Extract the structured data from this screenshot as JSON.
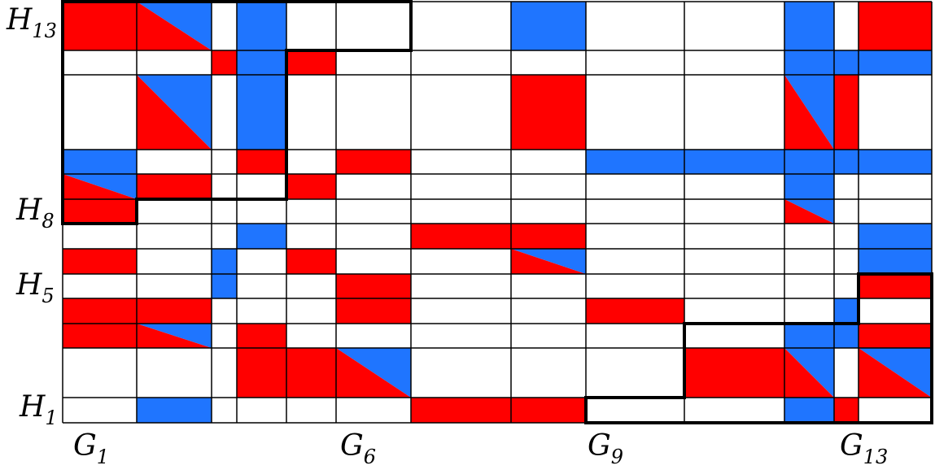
{
  "colors": {
    "red": "#ff0000",
    "blue": "#1f75ff",
    "white": "#ffffff",
    "grid": "#000000",
    "outline": "#000000"
  },
  "row_labels": [
    {
      "letter": "H",
      "index": "13"
    },
    {
      "letter": "H",
      "index": "8"
    },
    {
      "letter": "H",
      "index": "5"
    },
    {
      "letter": "H",
      "index": "1"
    }
  ],
  "col_labels": [
    {
      "letter": "G",
      "index": "1"
    },
    {
      "letter": "G",
      "index": "6"
    },
    {
      "letter": "G",
      "index": "9"
    },
    {
      "letter": "G",
      "index": "13"
    }
  ],
  "grid": {
    "columns": 13,
    "rows": 13
  },
  "cells": [
    {
      "c": 1,
      "r": 13,
      "fill": "red"
    },
    {
      "c": 2,
      "r": 13,
      "fill": "split",
      "upper": "blue",
      "lower": "red"
    },
    {
      "c": 4,
      "r": 13,
      "fill": "blue"
    },
    {
      "c": 8,
      "r": 13,
      "fill": "blue"
    },
    {
      "c": 11,
      "r": 13,
      "fill": "blue"
    },
    {
      "c": 13,
      "r": 13,
      "fill": "red"
    },
    {
      "c": 3,
      "r": 12,
      "fill": "red"
    },
    {
      "c": 4,
      "r": 12,
      "fill": "blue"
    },
    {
      "c": 5,
      "r": 12,
      "fill": "red"
    },
    {
      "c": 11,
      "r": 12,
      "fill": "blue"
    },
    {
      "c": 12,
      "r": 12,
      "fill": "blue"
    },
    {
      "c": 13,
      "r": 12,
      "fill": "blue"
    },
    {
      "c": 2,
      "r": 11,
      "fill": "split",
      "upper": "blue",
      "lower": "red"
    },
    {
      "c": 4,
      "r": 11,
      "fill": "blue"
    },
    {
      "c": 8,
      "r": 11,
      "fill": "red"
    },
    {
      "c": 11,
      "r": 11,
      "fill": "split",
      "upper": "blue",
      "lower": "red"
    },
    {
      "c": 12,
      "r": 11,
      "fill": "red"
    },
    {
      "c": 1,
      "r": 10,
      "fill": "blue"
    },
    {
      "c": 4,
      "r": 10,
      "fill": "red"
    },
    {
      "c": 6,
      "r": 10,
      "fill": "red"
    },
    {
      "c": 9,
      "r": 10,
      "fill": "blue"
    },
    {
      "c": 10,
      "r": 10,
      "fill": "blue"
    },
    {
      "c": 11,
      "r": 10,
      "fill": "blue"
    },
    {
      "c": 12,
      "r": 10,
      "fill": "blue"
    },
    {
      "c": 13,
      "r": 10,
      "fill": "blue"
    },
    {
      "c": 1,
      "r": 9,
      "fill": "split",
      "upper": "blue",
      "lower": "red"
    },
    {
      "c": 2,
      "r": 9,
      "fill": "red"
    },
    {
      "c": 5,
      "r": 9,
      "fill": "red"
    },
    {
      "c": 11,
      "r": 9,
      "fill": "blue"
    },
    {
      "c": 1,
      "r": 8,
      "fill": "red"
    },
    {
      "c": 11,
      "r": 8,
      "fill": "split",
      "upper": "blue",
      "lower": "red"
    },
    {
      "c": 4,
      "r": 7,
      "fill": "blue"
    },
    {
      "c": 7,
      "r": 7,
      "fill": "red"
    },
    {
      "c": 8,
      "r": 7,
      "fill": "red"
    },
    {
      "c": 13,
      "r": 7,
      "fill": "blue"
    },
    {
      "c": 1,
      "r": 6,
      "fill": "red"
    },
    {
      "c": 3,
      "r": 6,
      "fill": "blue"
    },
    {
      "c": 5,
      "r": 6,
      "fill": "red"
    },
    {
      "c": 8,
      "r": 6,
      "fill": "split",
      "upper": "blue",
      "lower": "red"
    },
    {
      "c": 13,
      "r": 6,
      "fill": "blue"
    },
    {
      "c": 3,
      "r": 5,
      "fill": "blue"
    },
    {
      "c": 6,
      "r": 5,
      "fill": "red"
    },
    {
      "c": 13,
      "r": 5,
      "fill": "red"
    },
    {
      "c": 1,
      "r": 4,
      "fill": "red"
    },
    {
      "c": 2,
      "r": 4,
      "fill": "red"
    },
    {
      "c": 6,
      "r": 4,
      "fill": "red"
    },
    {
      "c": 9,
      "r": 4,
      "fill": "red"
    },
    {
      "c": 12,
      "r": 4,
      "fill": "blue"
    },
    {
      "c": 1,
      "r": 3,
      "fill": "red"
    },
    {
      "c": 2,
      "r": 3,
      "fill": "split",
      "upper": "blue",
      "lower": "red"
    },
    {
      "c": 4,
      "r": 3,
      "fill": "red"
    },
    {
      "c": 11,
      "r": 3,
      "fill": "blue"
    },
    {
      "c": 12,
      "r": 3,
      "fill": "blue"
    },
    {
      "c": 13,
      "r": 3,
      "fill": "red"
    },
    {
      "c": 4,
      "r": 2,
      "fill": "red"
    },
    {
      "c": 5,
      "r": 2,
      "fill": "red"
    },
    {
      "c": 6,
      "r": 2,
      "fill": "split",
      "upper": "blue",
      "lower": "red"
    },
    {
      "c": 10,
      "r": 2,
      "fill": "red"
    },
    {
      "c": 11,
      "r": 2,
      "fill": "split",
      "upper": "blue",
      "lower": "red"
    },
    {
      "c": 13,
      "r": 2,
      "fill": "split",
      "upper": "blue",
      "lower": "red"
    },
    {
      "c": 2,
      "r": 1,
      "fill": "blue"
    },
    {
      "c": 7,
      "r": 1,
      "fill": "red"
    },
    {
      "c": 8,
      "r": 1,
      "fill": "red"
    },
    {
      "c": 11,
      "r": 1,
      "fill": "blue"
    },
    {
      "c": 12,
      "r": 1,
      "fill": "red"
    }
  ]
}
